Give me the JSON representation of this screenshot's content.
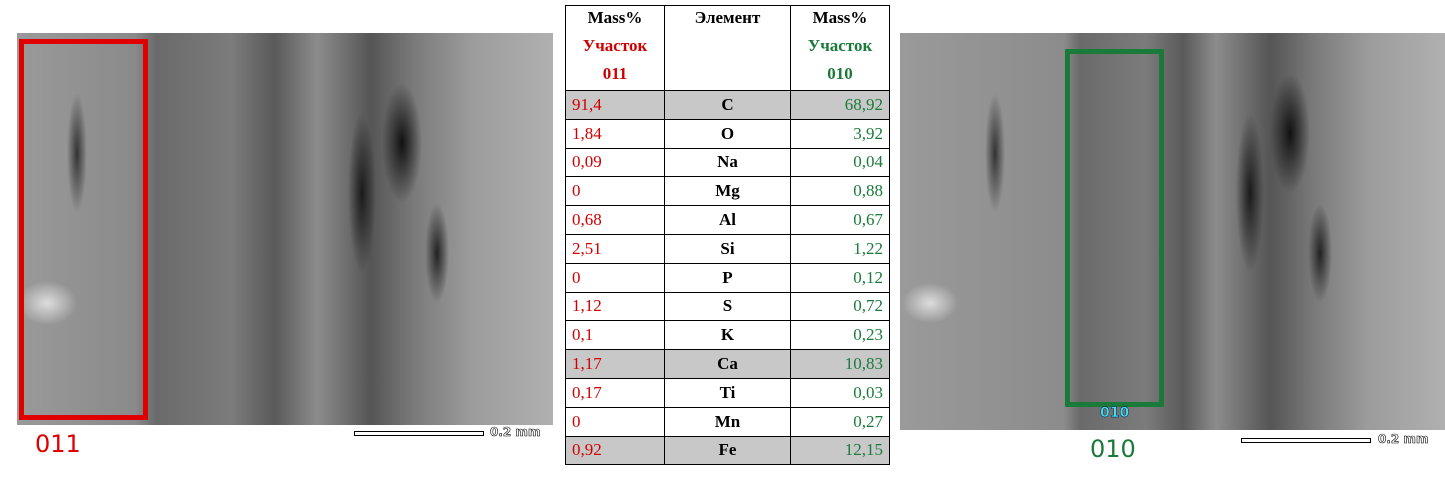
{
  "left_image": {
    "label": "011",
    "scale_label": "0.2 mm"
  },
  "right_image": {
    "label": "010",
    "box_label": "010",
    "scale_label": "0.2 mm"
  },
  "table": {
    "header": [
      "Mass%",
      "Элемент",
      "Mass%"
    ],
    "subheader": [
      [
        "Участок",
        "011"
      ],
      [
        "Участок",
        "010"
      ]
    ],
    "rows": [
      [
        "91,4",
        "C",
        "68,92"
      ],
      [
        "1,84",
        "O",
        "3,92"
      ],
      [
        "0,09",
        "Na",
        "0,04"
      ],
      [
        "0",
        "Mg",
        "0,88"
      ],
      [
        "0,68",
        "Al",
        "0,67"
      ],
      [
        "2,51",
        "Si",
        "1,22"
      ],
      [
        "0",
        "P",
        "0,12"
      ],
      [
        "1,12",
        "S",
        "0,72"
      ],
      [
        "0,1",
        "K",
        "0,23"
      ],
      [
        "1,17",
        "Ca",
        "10,83"
      ],
      [
        "0,17",
        "Ti",
        "0,03"
      ],
      [
        "0",
        "Mn",
        "0,27"
      ],
      [
        "0,92",
        "Fe",
        "12,15"
      ]
    ]
  }
}
